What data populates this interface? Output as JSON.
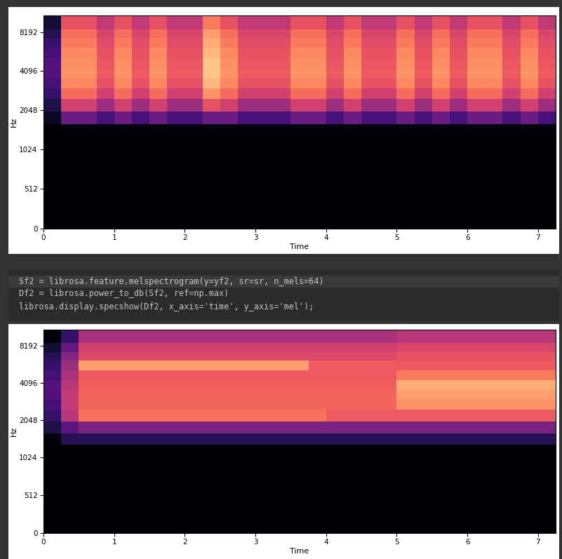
{
  "chart_data": [
    {
      "type": "heatmap",
      "xlabel": "Time",
      "ylabel": "Hz",
      "xlim": [
        0,
        7.25
      ],
      "ylim": [
        0,
        11025
      ],
      "xticks": [
        0,
        1,
        2,
        3,
        4,
        5,
        6,
        7
      ],
      "yticks": [
        0,
        512,
        1024,
        2048,
        4096,
        8192
      ],
      "clim": [
        -80,
        0
      ],
      "x_edges": [
        0,
        0.25,
        0.5,
        0.75,
        1.0,
        1.25,
        1.5,
        1.75,
        2.0,
        2.25,
        2.5,
        2.75,
        3.0,
        3.25,
        3.5,
        3.75,
        4.0,
        4.25,
        4.5,
        4.75,
        5.0,
        5.25,
        5.5,
        5.75,
        6.0,
        6.25,
        6.5,
        6.75,
        7.0,
        7.25
      ],
      "y_edges": [
        0,
        256,
        512,
        768,
        1024,
        1300,
        1600,
        2000,
        2500,
        3000,
        3600,
        4300,
        5200,
        6200,
        7300,
        8600,
        11025
      ],
      "cells": [
        [
          -80,
          -80,
          -80,
          -80,
          -80,
          -80,
          -80,
          -80,
          -80,
          -80,
          -80,
          -80,
          -80,
          -80,
          -80,
          -80,
          -80,
          -80,
          -80,
          -80,
          -80,
          -80,
          -80,
          -80,
          -80,
          -80,
          -80,
          -80,
          -80
        ],
        [
          -80,
          -80,
          -80,
          -80,
          -80,
          -80,
          -80,
          -80,
          -80,
          -80,
          -80,
          -80,
          -80,
          -80,
          -80,
          -80,
          -80,
          -80,
          -80,
          -80,
          -80,
          -80,
          -80,
          -80,
          -80,
          -80,
          -80,
          -80,
          -80
        ],
        [
          -80,
          -80,
          -80,
          -80,
          -80,
          -80,
          -80,
          -80,
          -80,
          -80,
          -80,
          -80,
          -80,
          -80,
          -80,
          -80,
          -80,
          -80,
          -80,
          -80,
          -80,
          -80,
          -80,
          -80,
          -80,
          -80,
          -80,
          -80,
          -80
        ],
        [
          -80,
          -80,
          -80,
          -80,
          -80,
          -80,
          -80,
          -80,
          -80,
          -80,
          -80,
          -80,
          -80,
          -80,
          -80,
          -80,
          -80,
          -80,
          -80,
          -80,
          -80,
          -80,
          -80,
          -80,
          -80,
          -80,
          -80,
          -80,
          -80
        ],
        [
          -80,
          -80,
          -80,
          -80,
          -80,
          -80,
          -80,
          -80,
          -80,
          -80,
          -80,
          -80,
          -80,
          -80,
          -80,
          -80,
          -80,
          -80,
          -80,
          -80,
          -80,
          -80,
          -80,
          -80,
          -80,
          -80,
          -80,
          -80,
          -80
        ],
        [
          -80,
          -78,
          -78,
          -78,
          -78,
          -78,
          -78,
          -78,
          -78,
          -78,
          -78,
          -78,
          -78,
          -78,
          -78,
          -78,
          -78,
          -78,
          -78,
          -78,
          -78,
          -78,
          -78,
          -78,
          -78,
          -78,
          -78,
          -78,
          -78
        ],
        [
          -75,
          -55,
          -55,
          -62,
          -55,
          -62,
          -55,
          -62,
          -62,
          -55,
          -55,
          -62,
          -62,
          -62,
          -55,
          -55,
          -62,
          -55,
          -62,
          -62,
          -55,
          -62,
          -55,
          -62,
          -55,
          -55,
          -62,
          -55,
          -62
        ],
        [
          -70,
          -35,
          -35,
          -45,
          -35,
          -45,
          -35,
          -45,
          -45,
          -30,
          -35,
          -45,
          -45,
          -45,
          -35,
          -35,
          -45,
          -35,
          -45,
          -45,
          -35,
          -45,
          -35,
          -45,
          -35,
          -35,
          -45,
          -35,
          -45
        ],
        [
          -65,
          -25,
          -25,
          -35,
          -25,
          -35,
          -25,
          -35,
          -35,
          -18,
          -25,
          -35,
          -35,
          -35,
          -25,
          -25,
          -35,
          -25,
          -35,
          -35,
          -25,
          -35,
          -25,
          -35,
          -25,
          -25,
          -35,
          -25,
          -35
        ],
        [
          -62,
          -20,
          -20,
          -30,
          -20,
          -30,
          -20,
          -30,
          -30,
          -12,
          -20,
          -30,
          -30,
          -30,
          -20,
          -20,
          -30,
          -20,
          -30,
          -30,
          -20,
          -30,
          -20,
          -30,
          -20,
          -20,
          -30,
          -20,
          -30
        ],
        [
          -60,
          -18,
          -18,
          -28,
          -18,
          -28,
          -18,
          -28,
          -28,
          -10,
          -18,
          -28,
          -28,
          -28,
          -18,
          -18,
          -28,
          -18,
          -28,
          -28,
          -18,
          -28,
          -18,
          -28,
          -18,
          -18,
          -28,
          -18,
          -28
        ],
        [
          -60,
          -19,
          -19,
          -29,
          -19,
          -29,
          -19,
          -29,
          -29,
          -10,
          -19,
          -29,
          -29,
          -29,
          -19,
          -19,
          -29,
          -19,
          -29,
          -29,
          -19,
          -29,
          -19,
          -29,
          -19,
          -19,
          -29,
          -19,
          -29
        ],
        [
          -62,
          -20,
          -20,
          -30,
          -20,
          -30,
          -20,
          -30,
          -30,
          -12,
          -20,
          -30,
          -30,
          -30,
          -20,
          -20,
          -30,
          -20,
          -30,
          -30,
          -20,
          -30,
          -20,
          -30,
          -20,
          -20,
          -30,
          -20,
          -30
        ],
        [
          -64,
          -22,
          -22,
          -31,
          -22,
          -31,
          -22,
          -31,
          -31,
          -14,
          -22,
          -31,
          -31,
          -31,
          -22,
          -22,
          -31,
          -22,
          -31,
          -31,
          -22,
          -31,
          -22,
          -31,
          -22,
          -22,
          -31,
          -22,
          -31
        ],
        [
          -68,
          -24,
          -24,
          -33,
          -24,
          -33,
          -24,
          -33,
          -33,
          -16,
          -24,
          -33,
          -33,
          -33,
          -24,
          -24,
          -33,
          -24,
          -33,
          -33,
          -24,
          -33,
          -24,
          -33,
          -24,
          -24,
          -33,
          -24,
          -33
        ],
        [
          -72,
          -30,
          -30,
          -38,
          -30,
          -38,
          -30,
          -38,
          -38,
          -22,
          -30,
          -38,
          -38,
          -38,
          -30,
          -30,
          -38,
          -30,
          -38,
          -38,
          -30,
          -38,
          -30,
          -38,
          -30,
          -30,
          -38,
          -30,
          -38
        ]
      ]
    },
    {
      "type": "heatmap",
      "xlabel": "Time",
      "ylabel": "Hz",
      "xlim": [
        0,
        7.25
      ],
      "ylim": [
        0,
        11025
      ],
      "xticks": [
        0,
        1,
        2,
        3,
        4,
        5,
        6,
        7
      ],
      "yticks": [
        0,
        512,
        1024,
        2048,
        4096,
        8192
      ],
      "clim": [
        -80,
        0
      ],
      "x_edges": [
        0,
        0.25,
        0.5,
        0.75,
        1.0,
        1.25,
        1.5,
        1.75,
        2.0,
        2.25,
        2.5,
        2.75,
        3.0,
        3.25,
        3.5,
        3.75,
        4.0,
        4.25,
        4.5,
        4.75,
        5.0,
        5.25,
        5.5,
        5.75,
        6.0,
        6.25,
        6.5,
        6.75,
        7.0,
        7.25
      ],
      "y_edges": [
        0,
        256,
        512,
        768,
        1024,
        1300,
        1600,
        2000,
        2500,
        3000,
        3600,
        4300,
        5200,
        6200,
        7300,
        8600,
        11025
      ],
      "cells": [
        [
          -80,
          -80,
          -80,
          -80,
          -80,
          -80,
          -80,
          -80,
          -80,
          -80,
          -80,
          -80,
          -80,
          -80,
          -80,
          -80,
          -80,
          -80,
          -80,
          -80,
          -80,
          -80,
          -80,
          -80,
          -80,
          -80,
          -80,
          -80,
          -80
        ],
        [
          -80,
          -80,
          -80,
          -80,
          -80,
          -80,
          -80,
          -80,
          -80,
          -80,
          -80,
          -80,
          -80,
          -80,
          -80,
          -80,
          -80,
          -80,
          -80,
          -80,
          -80,
          -80,
          -80,
          -80,
          -80,
          -80,
          -80,
          -80,
          -80
        ],
        [
          -80,
          -80,
          -80,
          -80,
          -80,
          -80,
          -80,
          -80,
          -80,
          -80,
          -80,
          -80,
          -80,
          -80,
          -80,
          -80,
          -80,
          -80,
          -80,
          -80,
          -80,
          -80,
          -80,
          -80,
          -80,
          -80,
          -80,
          -80,
          -80
        ],
        [
          -80,
          -80,
          -80,
          -80,
          -80,
          -80,
          -80,
          -80,
          -80,
          -80,
          -80,
          -80,
          -80,
          -80,
          -80,
          -80,
          -80,
          -80,
          -80,
          -80,
          -80,
          -80,
          -80,
          -80,
          -80,
          -80,
          -80,
          -80,
          -80
        ],
        [
          -80,
          -80,
          -80,
          -80,
          -80,
          -80,
          -80,
          -80,
          -80,
          -80,
          -80,
          -80,
          -80,
          -80,
          -80,
          -80,
          -80,
          -80,
          -80,
          -80,
          -80,
          -80,
          -80,
          -80,
          -80,
          -80,
          -80,
          -80,
          -80
        ],
        [
          -78,
          -68,
          -68,
          -68,
          -68,
          -68,
          -68,
          -68,
          -68,
          -68,
          -68,
          -68,
          -68,
          -68,
          -68,
          -68,
          -68,
          -68,
          -68,
          -68,
          -68,
          -68,
          -68,
          -68,
          -68,
          -68,
          -68,
          -68,
          -68
        ],
        [
          -70,
          -58,
          -52,
          -52,
          -52,
          -52,
          -52,
          -52,
          -52,
          -52,
          -52,
          -52,
          -52,
          -52,
          -52,
          -52,
          -52,
          -52,
          -52,
          -52,
          -52,
          -52,
          -52,
          -52,
          -52,
          -52,
          -52,
          -52,
          -52
        ],
        [
          -65,
          -40,
          -24,
          -24,
          -24,
          -24,
          -24,
          -24,
          -24,
          -24,
          -24,
          -24,
          -24,
          -24,
          -24,
          -24,
          -28,
          -28,
          -28,
          -28,
          -28,
          -28,
          -28,
          -28,
          -28,
          -28,
          -28,
          -28,
          -28
        ],
        [
          -62,
          -38,
          -26,
          -26,
          -26,
          -26,
          -26,
          -26,
          -26,
          -26,
          -26,
          -26,
          -26,
          -26,
          -26,
          -26,
          -26,
          -26,
          -26,
          -26,
          -18,
          -18,
          -18,
          -18,
          -18,
          -18,
          -18,
          -18,
          -18
        ],
        [
          -60,
          -38,
          -26,
          -26,
          -26,
          -26,
          -26,
          -26,
          -26,
          -26,
          -26,
          -26,
          -26,
          -26,
          -26,
          -26,
          -26,
          -26,
          -26,
          -26,
          -16,
          -16,
          -16,
          -16,
          -16,
          -16,
          -16,
          -16,
          -16
        ],
        [
          -60,
          -40,
          -27,
          -27,
          -27,
          -27,
          -27,
          -27,
          -27,
          -27,
          -27,
          -27,
          -27,
          -27,
          -27,
          -27,
          -27,
          -27,
          -27,
          -27,
          -14,
          -14,
          -14,
          -14,
          -14,
          -14,
          -14,
          -14,
          -14
        ],
        [
          -62,
          -42,
          -28,
          -28,
          -28,
          -28,
          -28,
          -28,
          -28,
          -28,
          -28,
          -28,
          -28,
          -28,
          -28,
          -28,
          -28,
          -28,
          -28,
          -28,
          -22,
          -22,
          -22,
          -22,
          -22,
          -22,
          -22,
          -22,
          -22
        ],
        [
          -65,
          -45,
          -16,
          -16,
          -16,
          -16,
          -16,
          -16,
          -16,
          -16,
          -16,
          -16,
          -16,
          -16,
          -16,
          -28,
          -28,
          -28,
          -28,
          -28,
          -28,
          -28,
          -28,
          -28,
          -28,
          -28,
          -28,
          -28,
          -28
        ],
        [
          -68,
          -50,
          -32,
          -32,
          -32,
          -32,
          -32,
          -32,
          -32,
          -32,
          -32,
          -32,
          -32,
          -32,
          -32,
          -32,
          -32,
          -32,
          -32,
          -32,
          -30,
          -30,
          -30,
          -30,
          -30,
          -30,
          -30,
          -30,
          -30
        ],
        [
          -72,
          -56,
          -35,
          -35,
          -35,
          -35,
          -35,
          -35,
          -35,
          -35,
          -35,
          -35,
          -35,
          -35,
          -35,
          -35,
          -35,
          -35,
          -35,
          -35,
          -33,
          -33,
          -33,
          -33,
          -33,
          -33,
          -33,
          -33,
          -33
        ],
        [
          -78,
          -65,
          -42,
          -42,
          -42,
          -42,
          -42,
          -42,
          -42,
          -42,
          -42,
          -42,
          -42,
          -42,
          -42,
          -42,
          -42,
          -42,
          -42,
          -42,
          -40,
          -40,
          -40,
          -40,
          -40,
          -40,
          -40,
          -40,
          -40
        ]
      ]
    }
  ],
  "code_cell": {
    "lines": [
      "Sf2 = librosa.feature.melspectrogram(y=yf2, sr=sr, n_mels=64)",
      "Df2 = librosa.power_to_db(Sf2, ref=np.max)",
      "librosa.display.specshow(Df2, x_axis='time', y_axis='mel');"
    ]
  }
}
